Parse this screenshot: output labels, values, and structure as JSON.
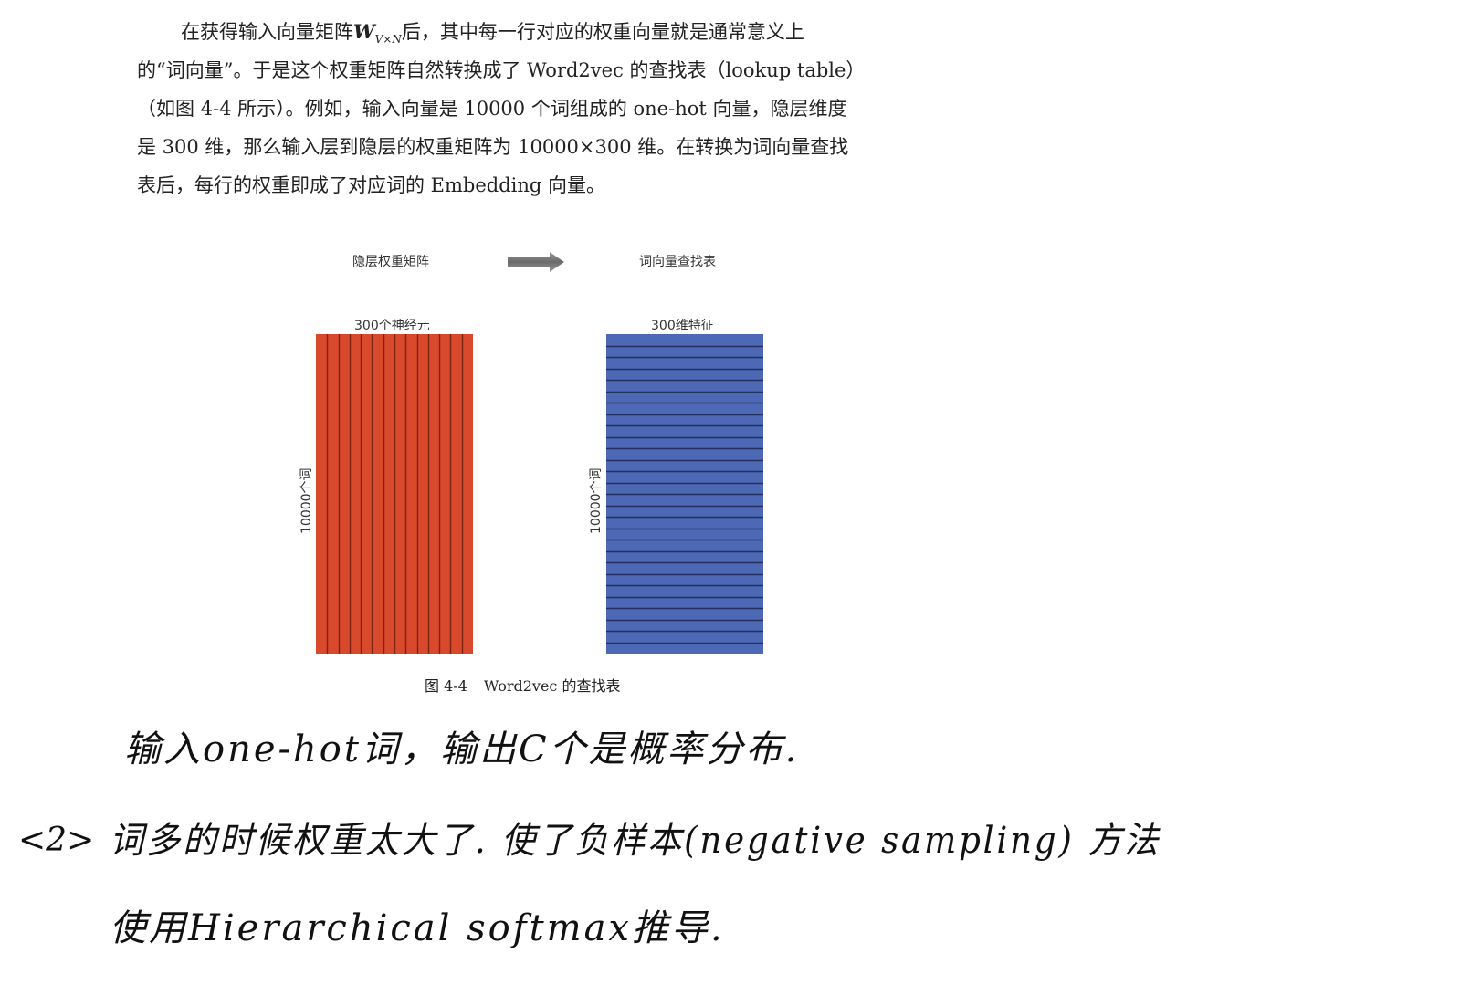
{
  "paragraph": {
    "line1_pre": "在获得输入向量矩阵",
    "matrix_symbol": "W",
    "matrix_subscript": "V×N",
    "line1_post": "后，其中每一行对应的权重向量就是通常意义上",
    "line2": "的“词向量”。于是这个权重矩阵自然转换成了 Word2vec 的查找表（lookup table）",
    "line3": "（如图 4-4 所示）。例如，输入向量是 10000 个词组成的 one-hot 向量，隐层维度",
    "line4": "是 300 维，那么输入层到隐层的权重矩阵为 10000×300 维。在转换为词向量查找",
    "line5": "表后，每行的权重即成了对应词的 Embedding 向量。"
  },
  "figure": {
    "left_title": "隐层权重矩阵",
    "right_title": "词向量查找表",
    "left_top_label": "300个神经元",
    "right_top_label": "300维特征",
    "left_side_label": "10000个词",
    "right_side_label": "10000个词",
    "left_color": "#d9492c",
    "right_color": "#4d68b4",
    "left_column_lines": 13,
    "right_row_lines": 27,
    "caption_number": "图 4-4",
    "caption_text": "Word2vec 的查找表"
  },
  "handwriting": {
    "line1": "输入one-hot词，输出C个是概率分布.",
    "line2_number": "<2>",
    "line2": "词多的时候权重太大了. 使了负样本(negative sampling) 方法",
    "line3": "使用Hierarchical softmax推导."
  }
}
